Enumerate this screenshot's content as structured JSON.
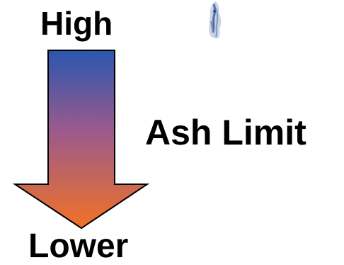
{
  "labels": {
    "top": "High",
    "bottom": "Lower",
    "main": "Ash Limit"
  },
  "arrow": {
    "direction": "down",
    "gradient_top_color": "#2a56b0",
    "gradient_middle_color": "#9a5a8c",
    "gradient_bottom_color": "#f27226"
  },
  "figure_icon": "small-figure-picture"
}
